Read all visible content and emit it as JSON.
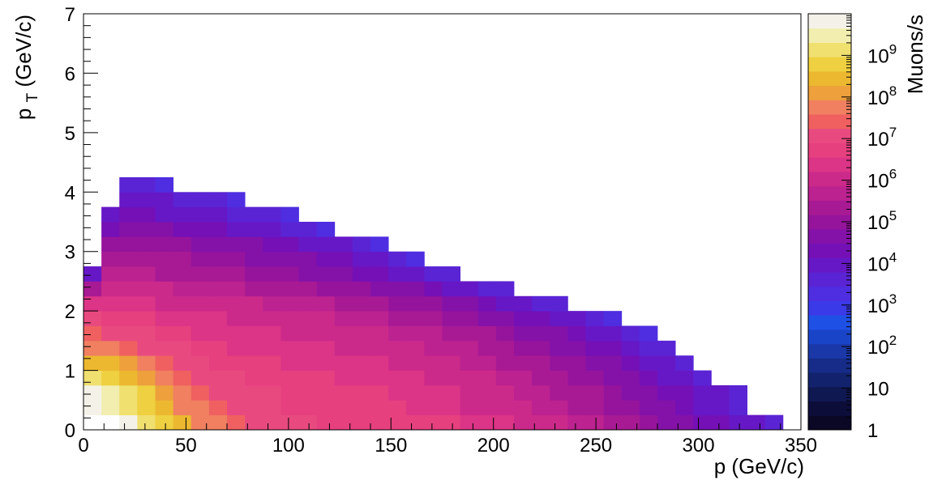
{
  "chart_data": {
    "type": "heatmap",
    "title": "",
    "xlabel": "p (GeV/c)",
    "ylabel": "p_T (GeV/c)",
    "ylabel_main": "p",
    "ylabel_sub": "T",
    "ylabel_rest": " (GeV/c)",
    "zlabel": "Muons/s",
    "xlim": [
      0,
      350
    ],
    "ylim": [
      0,
      7
    ],
    "zlim": [
      1,
      10000000000
    ],
    "z_log_scale": true,
    "x_ticks": [
      "0",
      "50",
      "100",
      "150",
      "200",
      "250",
      "300",
      "350"
    ],
    "y_ticks": [
      "0",
      "1",
      "2",
      "3",
      "4",
      "5",
      "6",
      "7"
    ],
    "z_ticks": [
      {
        "value": 1,
        "label": "1"
      },
      {
        "value": 10,
        "label": "10"
      },
      {
        "value": 100,
        "label": "10",
        "exp": "2"
      },
      {
        "value": 1000,
        "label": "10",
        "exp": "3"
      },
      {
        "value": 10000,
        "label": "10",
        "exp": "4"
      },
      {
        "value": 100000,
        "label": "10",
        "exp": "5"
      },
      {
        "value": 1000000,
        "label": "10",
        "exp": "6"
      },
      {
        "value": 10000000,
        "label": "10",
        "exp": "7"
      },
      {
        "value": 100000000,
        "label": "10",
        "exp": "8"
      },
      {
        "value": 1000000000,
        "label": "10",
        "exp": "9"
      }
    ],
    "palette": [
      "#0a0825",
      "#0d0d3a",
      "#101852",
      "#13226c",
      "#162c88",
      "#1a38a8",
      "#1a44c8",
      "#1f50e6",
      "#3a3ae8",
      "#4e2ee0",
      "#5a24d4",
      "#6618c6",
      "#7410b6",
      "#8412a8",
      "#96149c",
      "#a81a94",
      "#bc2290",
      "#cc2a8a",
      "#dc3486",
      "#e6407e",
      "#e84a80",
      "#f06060",
      "#f08060",
      "#eda03c",
      "#ecb830",
      "#eed040",
      "#f0e070",
      "#f2eeb0",
      "#f4f2e8"
    ],
    "bin_size": {
      "dx": 8.75,
      "dy": 0.25
    },
    "grid": false,
    "legend": "color bar right",
    "cells_note": "each row: [pT bin center, [[p bin start index, log10(Muons/s) per bin ...]...]]",
    "rows": [
      [
        0.125,
        [
          [
            2,
            9.8,
            9.3,
            8.8,
            8.3,
            7.9,
            7.6,
            7.4,
            7.2,
            7.0,
            7.0,
            6.9,
            6.8,
            6.8,
            6.8,
            6.7,
            6.7,
            6.7,
            6.6,
            6.6,
            6.5,
            6.4,
            6.3,
            6.2,
            6.1,
            5.9,
            5.8,
            5.6,
            5.4,
            5.2,
            5.0,
            4.8,
            4.6,
            4.4,
            4.2,
            4.0,
            3.8,
            3.5
          ]
        ]
      ],
      [
        0.375,
        [
          [
            0,
            9.9,
            9.6,
            9.2,
            8.7,
            8.3,
            7.9,
            7.6,
            7.3,
            7.1,
            7.0,
            6.9,
            6.8,
            6.8,
            6.7,
            6.7,
            6.7,
            6.6,
            6.6,
            6.5,
            6.4,
            6.3,
            6.2,
            6.1,
            6.0,
            5.9,
            5.8,
            5.6,
            5.5,
            5.3,
            5.1,
            4.9,
            4.7,
            4.5,
            4.3,
            4.1,
            3.9,
            3.6
          ]
        ]
      ],
      [
        0.625,
        [
          [
            0,
            9.8,
            9.5,
            9.1,
            8.7,
            8.2,
            7.8,
            7.5,
            7.2,
            7.1,
            7.0,
            6.9,
            6.8,
            6.7,
            6.7,
            6.6,
            6.6,
            6.6,
            6.5,
            6.5,
            6.4,
            6.3,
            6.1,
            6.0,
            5.9,
            5.8,
            5.6,
            5.5,
            5.3,
            5.2,
            5.0,
            4.8,
            4.6,
            4.4,
            4.2,
            4.0,
            3.8,
            3.5
          ]
        ]
      ],
      [
        0.875,
        [
          [
            0,
            9.2,
            8.9,
            8.5,
            8.1,
            7.7,
            7.4,
            7.2,
            7.0,
            6.9,
            6.8,
            6.7,
            6.7,
            6.6,
            6.6,
            6.5,
            6.5,
            6.4,
            6.4,
            6.3,
            6.2,
            6.1,
            6.0,
            5.9,
            5.7,
            5.6,
            5.4,
            5.3,
            5.1,
            4.9,
            4.7,
            4.5,
            4.3,
            4.1,
            3.9,
            3.7
          ]
        ]
      ],
      [
        1.125,
        [
          [
            0,
            8.6,
            8.3,
            8.0,
            7.6,
            7.4,
            7.1,
            6.9,
            6.8,
            6.7,
            6.6,
            6.6,
            6.5,
            6.5,
            6.4,
            6.4,
            6.3,
            6.3,
            6.2,
            6.1,
            6.0,
            5.9,
            5.8,
            5.7,
            5.5,
            5.4,
            5.2,
            5.0,
            4.9,
            4.7,
            4.5,
            4.3,
            4.1,
            3.8,
            3.6
          ]
        ]
      ],
      [
        1.375,
        [
          [
            0,
            7.9,
            7.7,
            7.5,
            7.2,
            7.0,
            6.9,
            6.7,
            6.6,
            6.5,
            6.5,
            6.4,
            6.4,
            6.3,
            6.3,
            6.2,
            6.2,
            6.1,
            6.0,
            5.9,
            5.8,
            5.7,
            5.6,
            5.4,
            5.3,
            5.1,
            4.9,
            4.8,
            4.6,
            4.4,
            4.2,
            4.0,
            3.7,
            3.5
          ]
        ]
      ],
      [
        1.625,
        [
          [
            0,
            7.3,
            7.2,
            7.0,
            6.9,
            6.7,
            6.6,
            6.5,
            6.4,
            6.4,
            6.3,
            6.3,
            6.2,
            6.2,
            6.1,
            6.0,
            6.0,
            5.9,
            5.8,
            5.7,
            5.6,
            5.5,
            5.3,
            5.2,
            5.0,
            4.8,
            4.7,
            4.5,
            4.3,
            4.1,
            3.8,
            3.6,
            3.4
          ]
        ]
      ],
      [
        1.875,
        [
          [
            0,
            6.9,
            6.8,
            6.7,
            6.6,
            6.5,
            6.4,
            6.3,
            6.3,
            6.2,
            6.1,
            6.1,
            6.0,
            6.0,
            5.9,
            5.8,
            5.7,
            5.6,
            5.5,
            5.4,
            5.3,
            5.1,
            5.0,
            4.8,
            4.6,
            4.4,
            4.2,
            4.0,
            3.8,
            3.6,
            3.4
          ]
        ]
      ],
      [
        2.125,
        [
          [
            0,
            6.4,
            6.5,
            6.4,
            6.3,
            6.2,
            6.1,
            6.1,
            6.0,
            5.9,
            5.9,
            5.8,
            5.7,
            5.6,
            5.6,
            5.5,
            5.4,
            5.3,
            5.1,
            5.0,
            4.9,
            4.7,
            4.5,
            4.3,
            4.1,
            3.9,
            3.7,
            3.5
          ]
        ]
      ],
      [
        2.375,
        [
          [
            0,
            5.2,
            6.2,
            6.1,
            6.0,
            5.9,
            5.8,
            5.7,
            5.6,
            5.6,
            5.5,
            5.4,
            5.3,
            5.2,
            5.1,
            5.0,
            4.9,
            4.8,
            4.6,
            4.5,
            4.3,
            4.1,
            3.9,
            3.7,
            3.5
          ]
        ]
      ],
      [
        2.625,
        [
          [
            0,
            3.8,
            5.7,
            5.7,
            5.6,
            5.5,
            5.4,
            5.3,
            5.3,
            5.2,
            5.1,
            5.0,
            4.9,
            4.8,
            4.7,
            4.6,
            4.4,
            4.3,
            4.1,
            3.9,
            3.7,
            3.5
          ]
        ]
      ],
      [
        2.875,
        [
          [
            1,
            5.3,
            5.5,
            5.4,
            5.3,
            5.2,
            5.1,
            5.0,
            4.9,
            4.8,
            4.7,
            4.6,
            4.5,
            4.3,
            4.2,
            4.0,
            3.8,
            3.6,
            3.4
          ]
        ]
      ],
      [
        3.125,
        [
          [
            1,
            4.9,
            5.1,
            5.0,
            5.0,
            4.9,
            4.8,
            4.7,
            4.6,
            4.5,
            4.4,
            4.3,
            4.1,
            4.0,
            3.8,
            3.6,
            3.4
          ]
        ]
      ],
      [
        3.375,
        [
          [
            1,
            4.4,
            4.7,
            4.6,
            4.5,
            4.4,
            4.3,
            4.2,
            4.1,
            4.0,
            3.9,
            3.7,
            3.6,
            3.4
          ]
        ]
      ],
      [
        3.625,
        [
          [
            1,
            4.0,
            4.3,
            4.2,
            4.1,
            4.0,
            3.9,
            3.8,
            3.7,
            3.6,
            3.5,
            3.4
          ]
        ]
      ],
      [
        3.875,
        [
          [
            2,
            3.8,
            3.9,
            3.8,
            3.7,
            3.6,
            3.5,
            3.4
          ]
        ]
      ],
      [
        4.125,
        [
          [
            2,
            3.6,
            3.5,
            3.4
          ]
        ]
      ]
    ]
  }
}
